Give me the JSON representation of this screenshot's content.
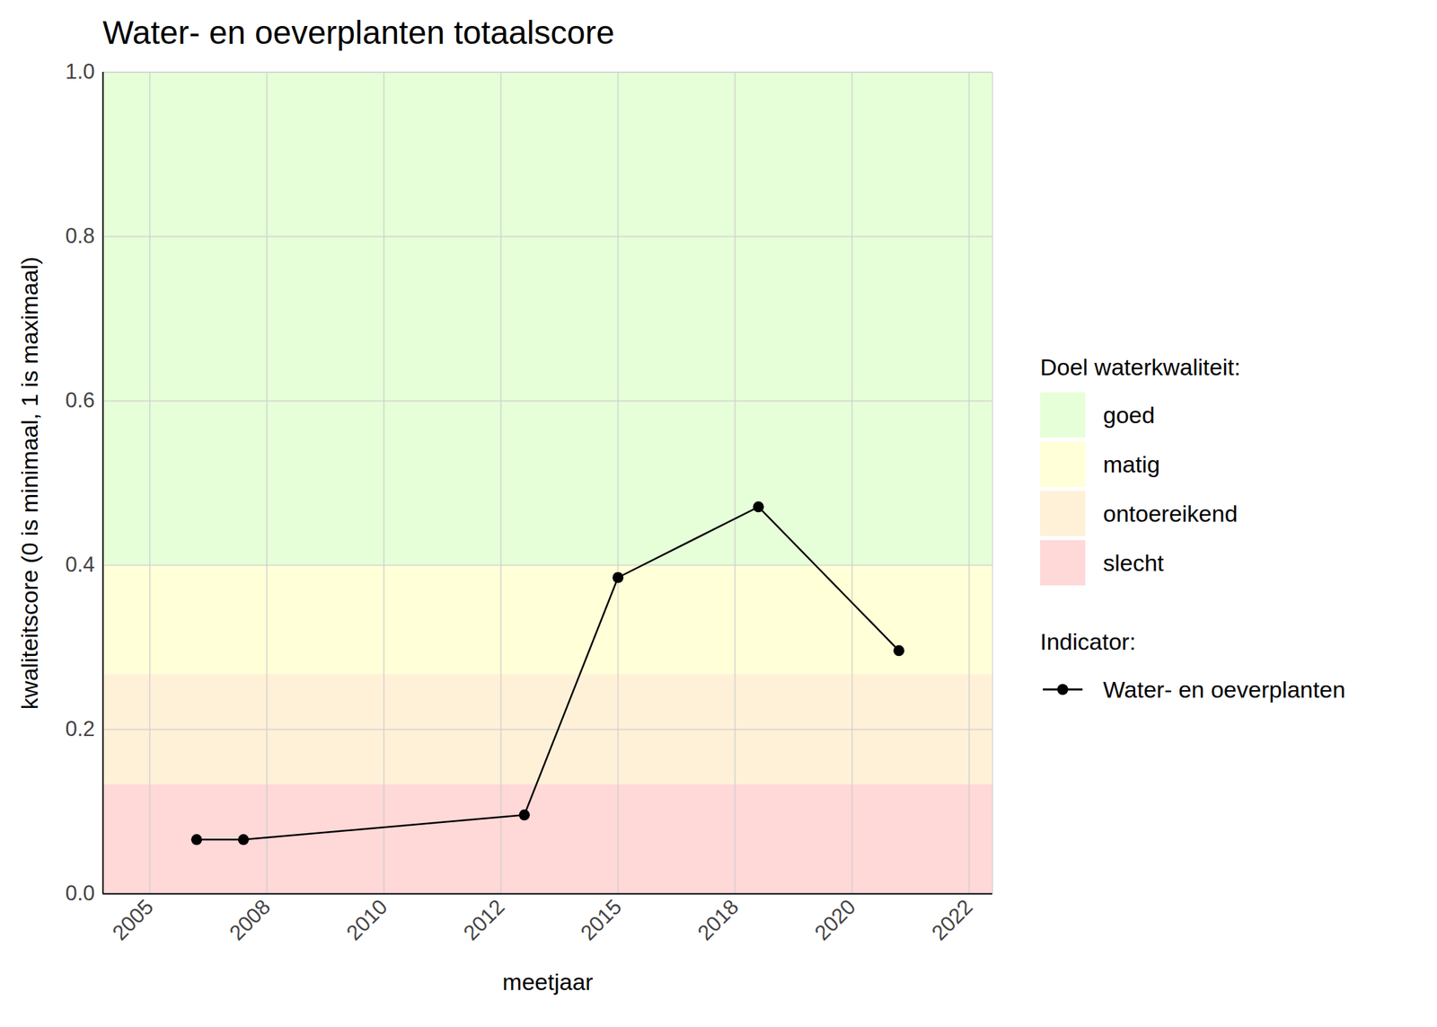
{
  "chart_data": {
    "type": "line",
    "title": "Water- en oeverplanten totaalscore",
    "x_label": "meetjaar",
    "y_label": "kwaliteitscore (0 is minimaal, 1 is maximaal)",
    "x": [
      2006,
      2007,
      2013,
      2015,
      2018,
      2021
    ],
    "series": [
      {
        "name": "Water- en oeverplanten",
        "color": "#000000",
        "marker": "circle",
        "line_style": "solid",
        "values": [
          0.066,
          0.066,
          0.096,
          0.385,
          0.471,
          0.296
        ]
      }
    ],
    "legend_title": "Indicator:",
    "bands": {
      "title": "Doel waterkwaliteit:",
      "items": [
        {
          "name": "goed",
          "from": 0.4,
          "to": 1.0,
          "color": "#e6ffd8"
        },
        {
          "name": "matig",
          "from": 0.267,
          "to": 0.4,
          "color": "#ffffd8"
        },
        {
          "name": "ontoereikend",
          "from": 0.133,
          "to": 0.267,
          "color": "#fff1d8"
        },
        {
          "name": "slecht",
          "from": 0.0,
          "to": 0.133,
          "color": "#ffd8d8"
        }
      ]
    },
    "xlim": [
      2004,
      2023
    ],
    "xticks": [
      2005,
      {
        "value": 2007.5,
        "label": "2008"
      },
      2010,
      {
        "value": 2012.5,
        "label": "2012"
      },
      2015,
      {
        "value": 2017.5,
        "label": "2018"
      },
      2020,
      {
        "value": 2022.5,
        "label": "2022"
      }
    ],
    "ylim": [
      0,
      1
    ],
    "yticks": [
      {
        "value": 0,
        "label": "0.0"
      },
      0.2,
      0.4,
      0.6,
      0.8,
      {
        "value": 1,
        "label": "1.0"
      }
    ],
    "grid": true,
    "legend": "right"
  }
}
